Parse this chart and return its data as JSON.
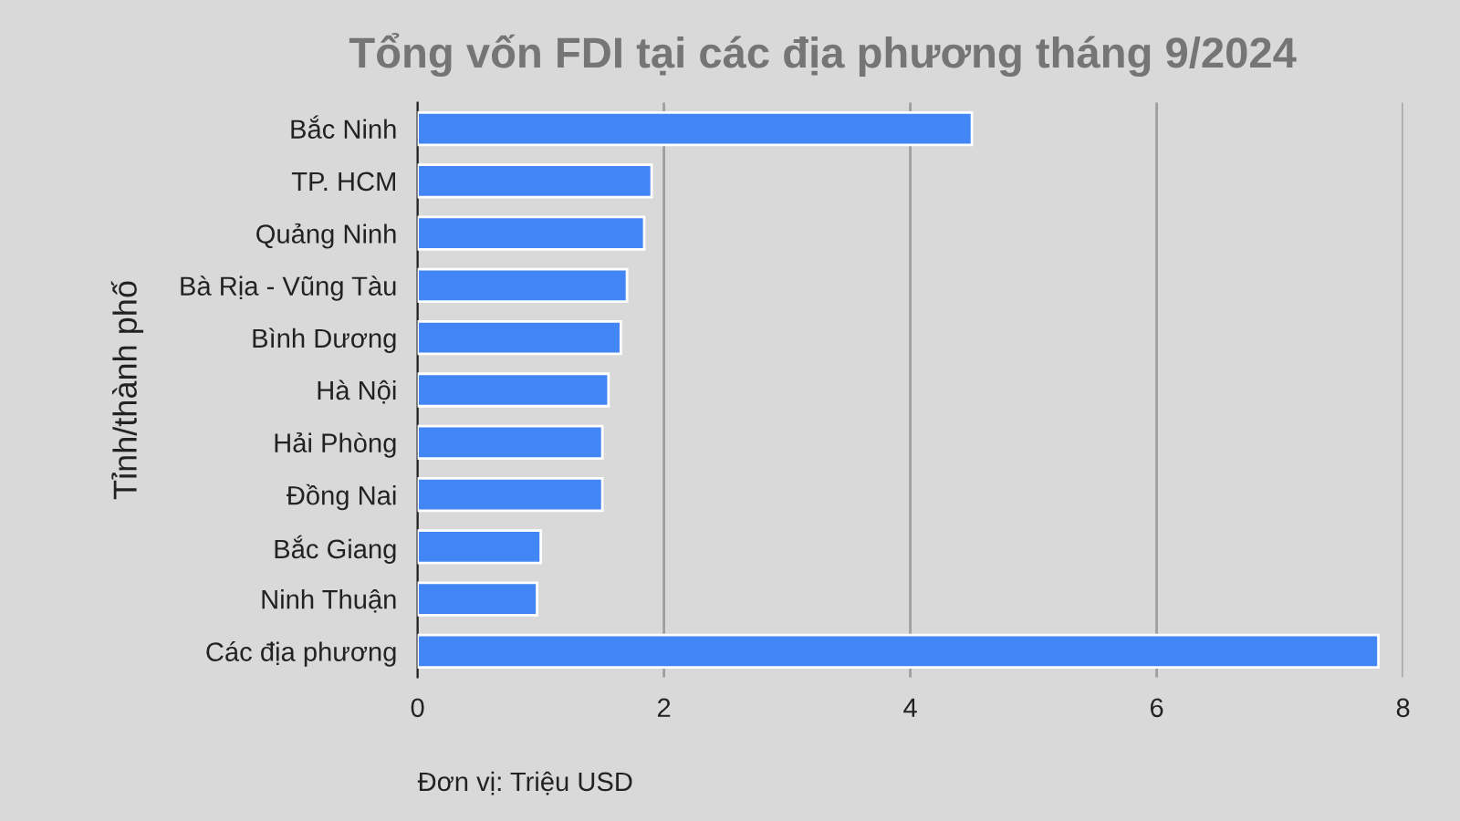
{
  "chart_data": {
    "type": "bar",
    "orientation": "horizontal",
    "title": "Tổng vốn FDI tại các địa phương tháng 9/2024",
    "ylabel": "Tỉnh/thành phố",
    "categories": [
      "Bắc Ninh",
      "TP. HCM",
      "Quảng Ninh",
      "Bà Rịa - Vũng Tàu",
      "Bình Dương",
      "Hà Nội",
      "Hải Phòng",
      "Đồng Nai",
      "Bắc Giang",
      "Ninh Thuận",
      "Các địa phương"
    ],
    "values": [
      4.5,
      1.9,
      1.84,
      1.7,
      1.65,
      1.55,
      1.5,
      1.5,
      1.0,
      0.97,
      7.8
    ],
    "color": "#4285f4",
    "xlim": [
      0,
      8
    ],
    "xticks": [
      0,
      2,
      4,
      6,
      8
    ],
    "grid": "x",
    "legend": false,
    "annotations": [
      "Đơn vị: Triệu USD"
    ]
  }
}
